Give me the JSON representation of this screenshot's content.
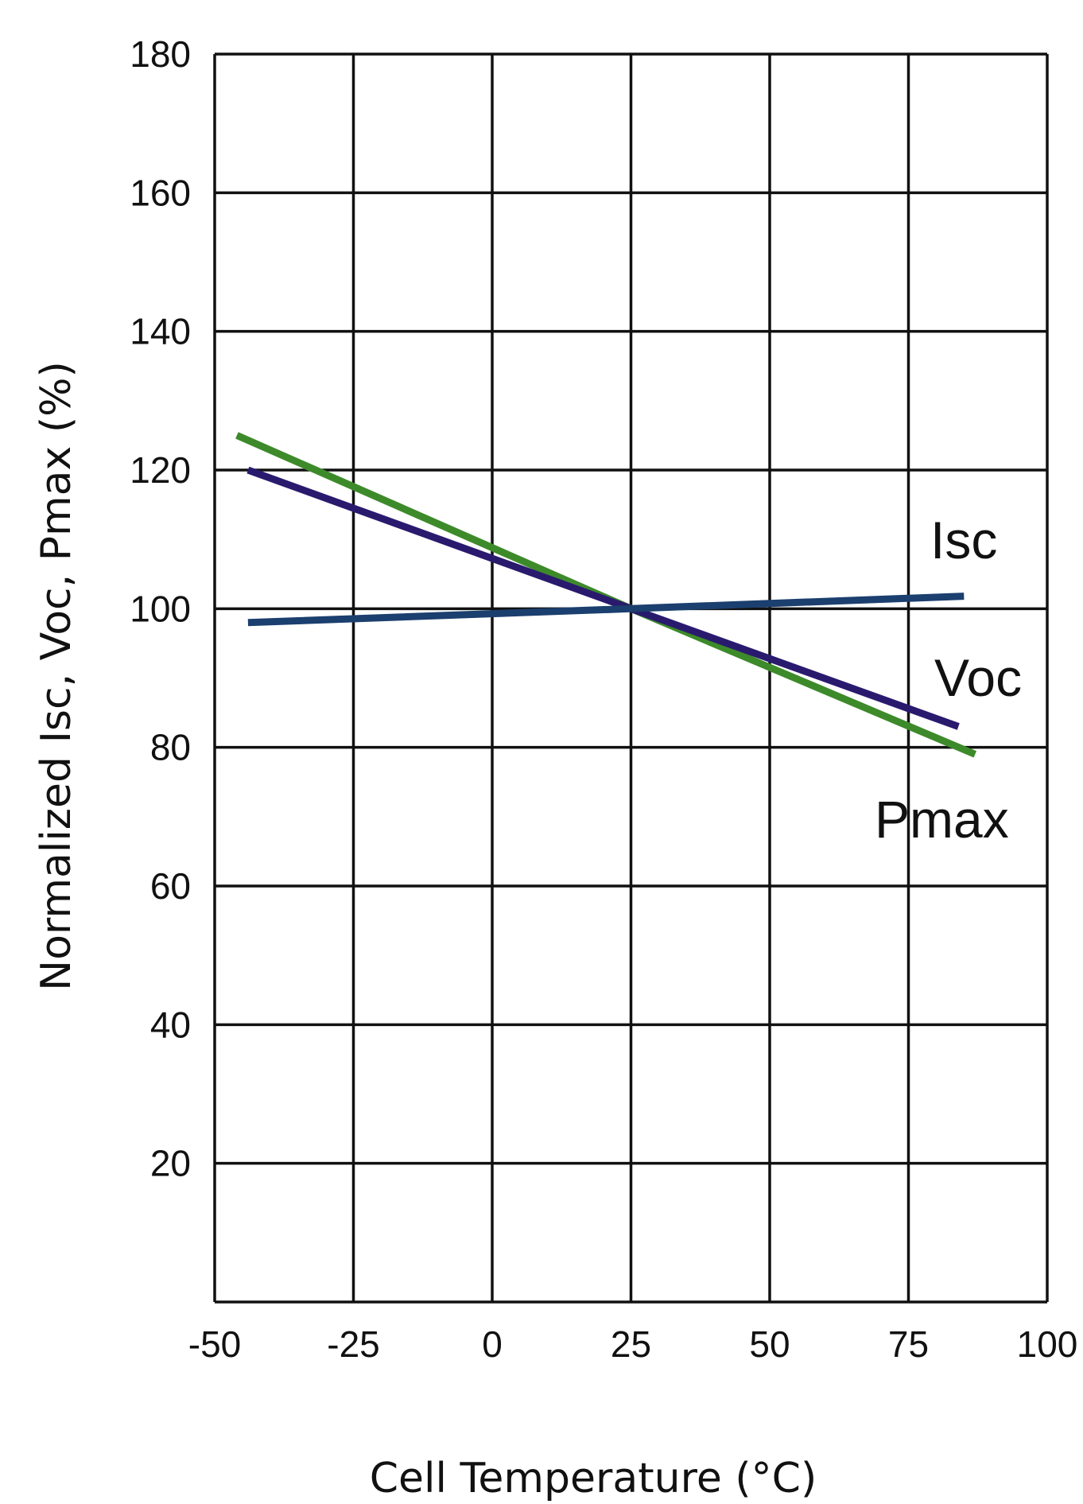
{
  "chart_data": {
    "type": "line",
    "xlabel": "Cell Temperature (°C)",
    "ylabel": "Normalized Isc, Voc, Pmax (%)",
    "xlim": [
      -50,
      100
    ],
    "ylim": [
      0,
      180
    ],
    "x_ticks": [
      -50,
      -25,
      0,
      25,
      50,
      75,
      100
    ],
    "y_ticks": [
      20,
      40,
      60,
      80,
      100,
      120,
      140,
      160,
      180
    ],
    "x_tick_labels": [
      "-50",
      "-25",
      "0",
      "25",
      "50",
      "75",
      "100"
    ],
    "y_tick_labels": [
      "20",
      "40",
      "60",
      "80",
      "100",
      "120",
      "140",
      "160",
      "180"
    ],
    "grid": true,
    "series": [
      {
        "name": "Isc",
        "color": "#1b3f6e",
        "x": [
          -44,
          25,
          85
        ],
        "y": [
          98,
          100,
          101.8
        ]
      },
      {
        "name": "Voc",
        "color": "#2a1a6e",
        "x": [
          -44,
          25,
          84
        ],
        "y": [
          120,
          100,
          83
        ]
      },
      {
        "name": "Pmax",
        "color": "#3d8a2a",
        "x": [
          -46,
          25,
          87
        ],
        "y": [
          125,
          100,
          79
        ]
      }
    ]
  }
}
